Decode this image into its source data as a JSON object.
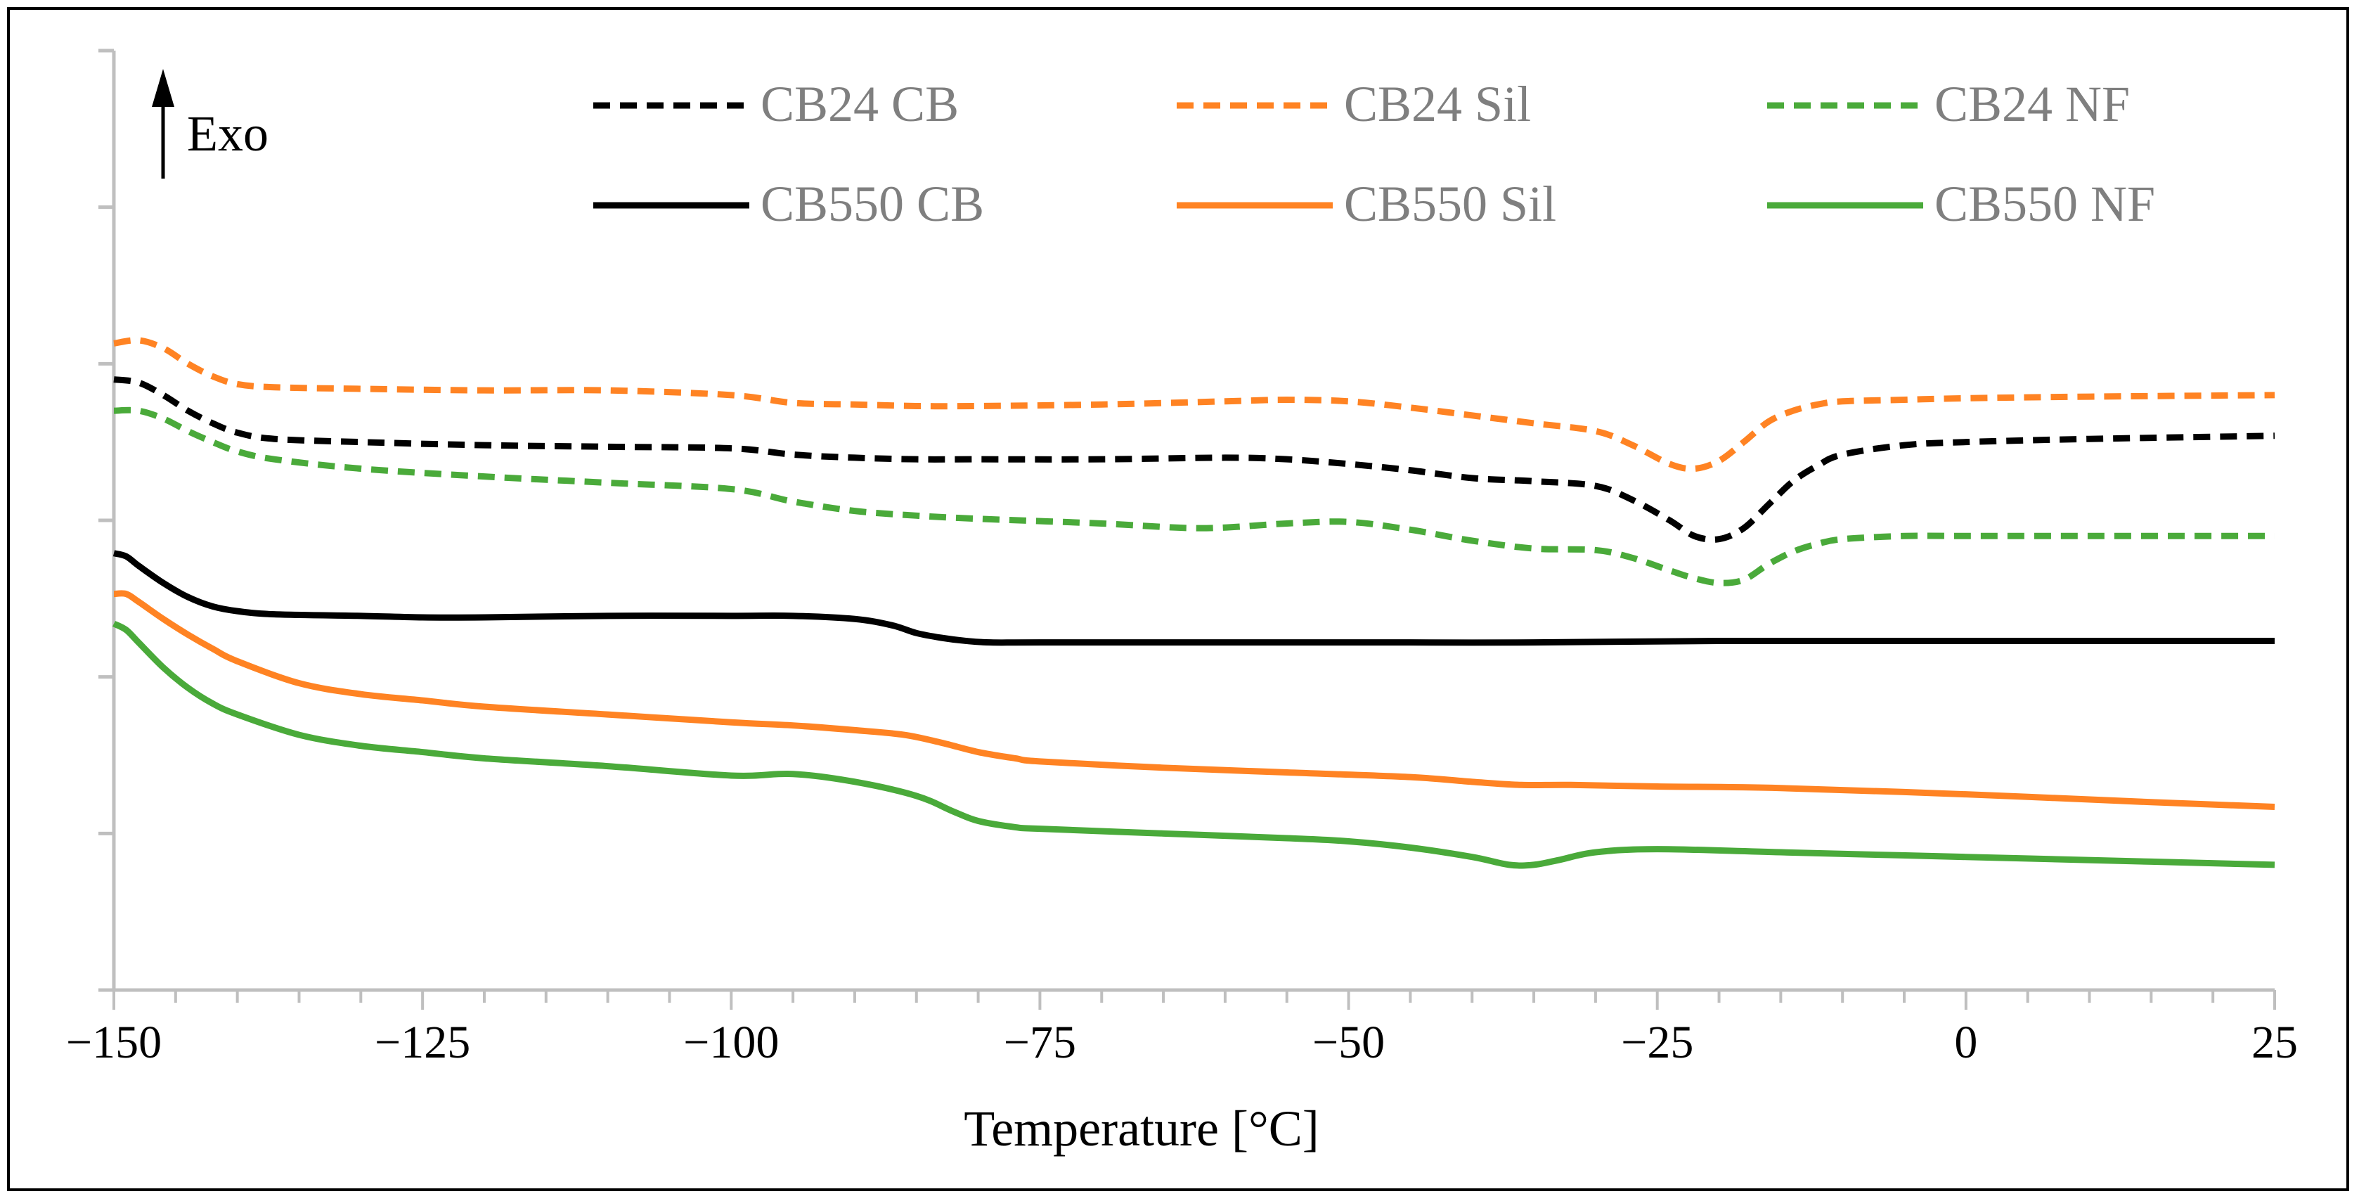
{
  "chart_data": {
    "type": "line",
    "title": "",
    "xlabel": "Temperature [°C]",
    "ylabel": "",
    "xlim": [
      -150,
      25
    ],
    "ylim": [
      0,
      6
    ],
    "x_ticks": [
      -150,
      -125,
      -100,
      -75,
      -50,
      -25,
      0,
      25
    ],
    "x_tick_labels": [
      "−150",
      "−125",
      "−100",
      "−75",
      "−50",
      "−25",
      "0",
      "25"
    ],
    "y_tick_count": 6,
    "annotation": "Exo",
    "legend_position": "top",
    "colors": {
      "black": "#000000",
      "orange": "#ff8323",
      "green": "#4aaa3a",
      "axis": "#bfbfbf",
      "legend_text": "#7f7f7f"
    },
    "series": [
      {
        "name": "CB24 CB",
        "color": "#000000",
        "style": "dashed",
        "x": [
          -150,
          -148,
          -146,
          -144,
          -142,
          -140,
          -137,
          -130,
          -120,
          -110,
          -100,
          -95,
          -90,
          -85,
          -80,
          -70,
          -60,
          -55,
          -50,
          -45,
          -40,
          -35,
          -30,
          -27,
          -24,
          -22,
          -20,
          -18,
          -16,
          -14,
          -12,
          -10,
          -5,
          0,
          10,
          25
        ],
        "y": [
          3.9,
          3.88,
          3.8,
          3.7,
          3.62,
          3.56,
          3.52,
          3.5,
          3.48,
          3.47,
          3.46,
          3.42,
          3.4,
          3.39,
          3.39,
          3.39,
          3.4,
          3.39,
          3.36,
          3.32,
          3.27,
          3.25,
          3.22,
          3.13,
          3.0,
          2.9,
          2.88,
          2.95,
          3.1,
          3.25,
          3.35,
          3.42,
          3.48,
          3.5,
          3.52,
          3.54
        ]
      },
      {
        "name": "CB24 Sil",
        "color": "#ff8323",
        "style": "dashed",
        "x": [
          -150,
          -148,
          -146,
          -144,
          -142,
          -140,
          -137,
          -130,
          -120,
          -110,
          -100,
          -95,
          -90,
          -85,
          -80,
          -70,
          -60,
          -55,
          -50,
          -45,
          -40,
          -35,
          -30,
          -27,
          -24,
          -22,
          -20,
          -18,
          -16,
          -14,
          -12,
          -10,
          -5,
          0,
          10,
          25
        ],
        "y": [
          4.13,
          4.15,
          4.1,
          4.0,
          3.92,
          3.87,
          3.85,
          3.84,
          3.83,
          3.83,
          3.8,
          3.75,
          3.74,
          3.73,
          3.73,
          3.74,
          3.76,
          3.77,
          3.76,
          3.72,
          3.67,
          3.62,
          3.57,
          3.48,
          3.36,
          3.33,
          3.38,
          3.5,
          3.63,
          3.7,
          3.74,
          3.76,
          3.77,
          3.78,
          3.79,
          3.8
        ]
      },
      {
        "name": "CB24 NF",
        "color": "#4aaa3a",
        "style": "dashed",
        "x": [
          -150,
          -148,
          -146,
          -144,
          -142,
          -140,
          -137,
          -130,
          -120,
          -110,
          -100,
          -95,
          -90,
          -85,
          -80,
          -70,
          -62,
          -55,
          -50,
          -45,
          -40,
          -35,
          -30,
          -27,
          -24,
          -22,
          -20,
          -18,
          -16,
          -14,
          -12,
          -10,
          -5,
          0,
          10,
          25
        ],
        "y": [
          3.7,
          3.7,
          3.65,
          3.57,
          3.5,
          3.44,
          3.39,
          3.33,
          3.28,
          3.24,
          3.2,
          3.12,
          3.06,
          3.03,
          3.01,
          2.98,
          2.95,
          2.98,
          2.99,
          2.94,
          2.87,
          2.82,
          2.81,
          2.76,
          2.68,
          2.63,
          2.6,
          2.62,
          2.72,
          2.8,
          2.85,
          2.88,
          2.9,
          2.9,
          2.9,
          2.9
        ]
      },
      {
        "name": "CB550 CB",
        "color": "#000000",
        "style": "solid",
        "x": [
          -150,
          -149,
          -148,
          -146,
          -144,
          -142,
          -140,
          -137,
          -130,
          -125,
          -120,
          -110,
          -100,
          -95,
          -90,
          -87,
          -85,
          -83,
          -81,
          -79,
          -75,
          -60,
          -45,
          -35,
          -20,
          0,
          25
        ],
        "y": [
          2.79,
          2.77,
          2.71,
          2.6,
          2.51,
          2.45,
          2.42,
          2.4,
          2.39,
          2.38,
          2.38,
          2.39,
          2.39,
          2.39,
          2.37,
          2.33,
          2.28,
          2.25,
          2.23,
          2.22,
          2.22,
          2.22,
          2.22,
          2.22,
          2.23,
          2.23,
          2.23
        ]
      },
      {
        "name": "CB550 Sil",
        "color": "#ff8323",
        "style": "solid",
        "x": [
          -150,
          -149,
          -148,
          -146,
          -144,
          -142,
          -140,
          -135,
          -130,
          -125,
          -120,
          -110,
          -100,
          -95,
          -90,
          -86,
          -83,
          -80,
          -77,
          -75,
          -65,
          -55,
          -45,
          -40,
          -36,
          -32,
          -25,
          -15,
          0,
          15,
          25
        ],
        "y": [
          2.53,
          2.53,
          2.48,
          2.37,
          2.27,
          2.18,
          2.1,
          1.96,
          1.89,
          1.85,
          1.81,
          1.76,
          1.71,
          1.69,
          1.66,
          1.63,
          1.58,
          1.52,
          1.48,
          1.46,
          1.42,
          1.39,
          1.36,
          1.33,
          1.31,
          1.31,
          1.3,
          1.29,
          1.25,
          1.2,
          1.17
        ]
      },
      {
        "name": "CB550 NF",
        "color": "#4aaa3a",
        "style": "solid",
        "x": [
          -150,
          -149,
          -148,
          -146,
          -144,
          -142,
          -140,
          -135,
          -130,
          -125,
          -120,
          -110,
          -100,
          -95,
          -90,
          -85,
          -82,
          -80,
          -77,
          -75,
          -65,
          -55,
          -50,
          -45,
          -40,
          -37,
          -35,
          -33,
          -30,
          -25,
          -15,
          0,
          15,
          25
        ],
        "y": [
          2.34,
          2.3,
          2.22,
          2.06,
          1.93,
          1.83,
          1.76,
          1.63,
          1.56,
          1.52,
          1.48,
          1.43,
          1.37,
          1.38,
          1.33,
          1.24,
          1.14,
          1.08,
          1.04,
          1.03,
          1.0,
          0.97,
          0.95,
          0.91,
          0.85,
          0.8,
          0.8,
          0.83,
          0.88,
          0.9,
          0.88,
          0.85,
          0.82,
          0.8
        ]
      }
    ]
  }
}
